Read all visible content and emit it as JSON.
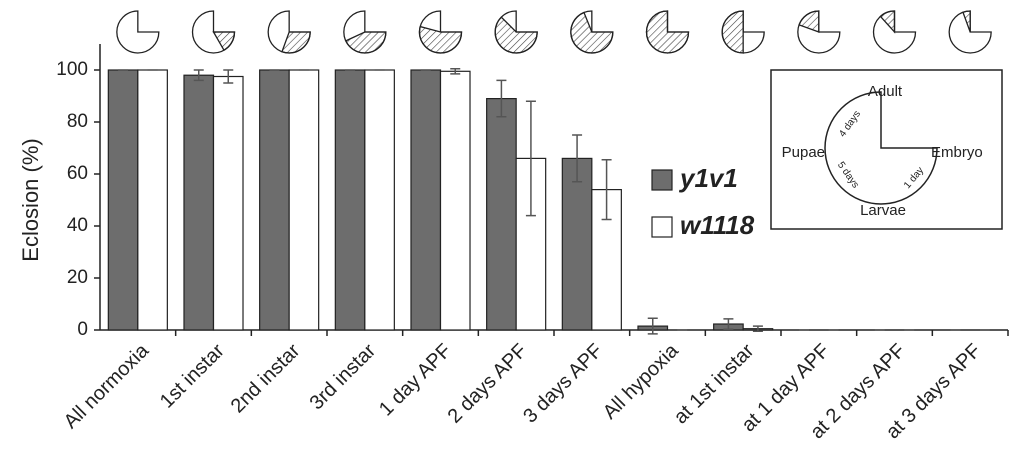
{
  "chart_data": {
    "type": "bar",
    "y_label": "Eclosion (%)",
    "categories": [
      "All normoxia",
      "1st instar",
      "2nd instar",
      "3rd instar",
      "1 day APF",
      "2 days APF",
      "3 days APF",
      "All hypoxia",
      "at 1st instar",
      "at 1 day APF",
      "at 2 days APF",
      "at 3 days APF"
    ],
    "series": [
      {
        "name": "y1v1",
        "color": "#6d6d6d",
        "values": [
          100,
          98,
          100,
          100,
          100,
          89,
          66,
          1.5,
          2.3,
          0,
          0,
          0
        ],
        "errors": [
          0,
          2,
          0,
          0,
          0,
          7,
          9,
          3,
          2,
          0,
          0,
          0
        ]
      },
      {
        "name": "w1118",
        "color": "#ffffff",
        "values": [
          100,
          97.5,
          100,
          100,
          99.5,
          66,
          54,
          0,
          0.5,
          0,
          0,
          0
        ],
        "errors": [
          0,
          2.5,
          0,
          0,
          1,
          22,
          11.5,
          0,
          1,
          0,
          0,
          0
        ]
      }
    ],
    "ylim": [
      0,
      110
    ],
    "yticks": [
      0,
      20,
      40,
      60,
      80,
      100
    ],
    "inset": {
      "adult": "Adult",
      "embryo": "Embryo",
      "larvae": "Larvae",
      "pupae": "Pupae",
      "pupae_days": "4 days",
      "larvae_days": "5 days",
      "embryo_days": "1 day"
    }
  }
}
